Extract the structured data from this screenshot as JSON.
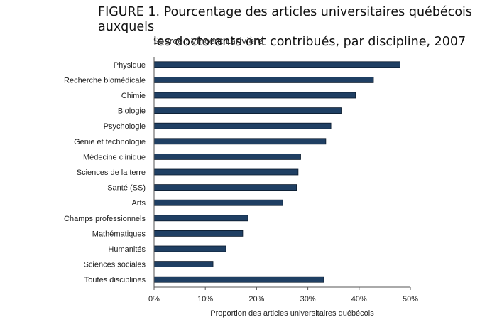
{
  "figure": {
    "title_line1": "FIGURE 1. Pourcentage des articles universitaires québécois auxquels",
    "title_line2": "les doctorants ont contribués, par discipline, 2007",
    "source": "Source : Vincent Larivière"
  },
  "colors": {
    "bar_fill": "#1f3f63",
    "bar_stroke": "#0b1a2c",
    "axis": "#555555"
  },
  "chart_data": {
    "type": "bar",
    "orientation": "horizontal",
    "categories": [
      "Physique",
      "Recherche biomédicale",
      "Chimie",
      "Biologie",
      "Psychologie",
      "Génie et technologie",
      "Médecine clinique",
      "Sciences de la terre",
      "Santé (SS)",
      "Arts",
      "Champs professionnels",
      "Mathématiques",
      "Humanités",
      "Sciences sociales",
      "Toutes disciplines"
    ],
    "values": [
      48.0,
      42.8,
      39.3,
      36.5,
      34.5,
      33.5,
      28.6,
      28.1,
      27.8,
      25.1,
      18.3,
      17.3,
      14.0,
      11.5,
      33.1
    ],
    "xlabel": "Proportion  des articles universitaires québécois",
    "ylabel": "",
    "xlim": [
      0,
      50
    ],
    "xticks": [
      0,
      10,
      20,
      30,
      40,
      50
    ],
    "xtick_labels": [
      "0%",
      "10%",
      "20%",
      "30%",
      "40%",
      "50%"
    ],
    "grid": false,
    "legend": "none"
  }
}
